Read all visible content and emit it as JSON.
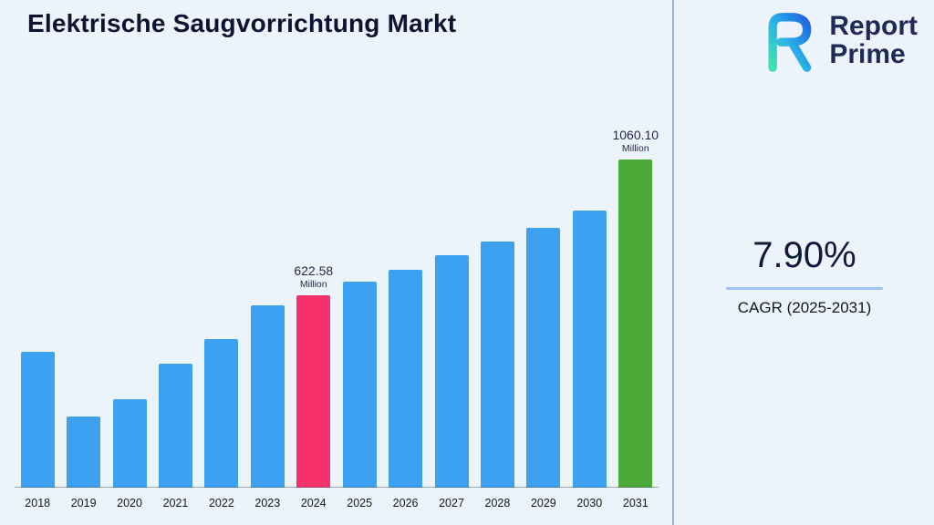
{
  "header": {
    "title": "Elektrische Saugvorrichtung Markt",
    "logo": {
      "line1": "Report",
      "line2": "Prime"
    }
  },
  "side_panel": {
    "cagr_value": "7.90%",
    "cagr_label": "CAGR (2025-2031)"
  },
  "chart_data": {
    "type": "bar",
    "title": "Elektrische Saugvorrichtung Markt",
    "unit": "Million",
    "categories": [
      "2018",
      "2019",
      "2020",
      "2021",
      "2022",
      "2023",
      "2024",
      "2025",
      "2026",
      "2027",
      "2028",
      "2029",
      "2030",
      "2031"
    ],
    "values": [
      440,
      230,
      285,
      400,
      480,
      590,
      622.58,
      665,
      705,
      750,
      795,
      840,
      895,
      1060.1
    ],
    "labeled_points": [
      {
        "category": "2024",
        "value_label": "622.58",
        "unit_label": "Million"
      },
      {
        "category": "2031",
        "value_label": "1060.10",
        "unit_label": "Million"
      }
    ],
    "bar_colors": {
      "default": "#3ba1f0",
      "2024": "#f5306b",
      "2031": "#4caa38"
    },
    "xlabel": "",
    "ylabel": "",
    "ylim": [
      0,
      1100
    ],
    "grid": false,
    "legend": false
  },
  "colors": {
    "background": "#edf3fb",
    "title_text": "#0b1531",
    "divider": "#8fb0ee",
    "cagr_underline": "#9fc0f2",
    "logo_text": "#1f2a56"
  }
}
